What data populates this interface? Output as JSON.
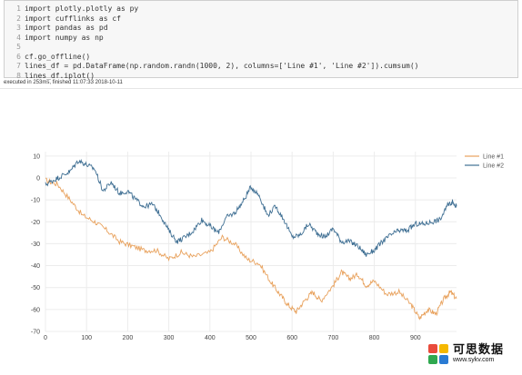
{
  "code_cell": {
    "lines": [
      {
        "num": "1",
        "text": "import plotly.plotly as py"
      },
      {
        "num": "2",
        "text": "import cufflinks as cf"
      },
      {
        "num": "3",
        "text": "import pandas as pd"
      },
      {
        "num": "4",
        "text": "import numpy as np"
      },
      {
        "num": "5",
        "text": ""
      },
      {
        "num": "6",
        "text": "cf.go_offline()"
      },
      {
        "num": "7",
        "text": "lines_df = pd.DataFrame(np.random.randn(1000, 2), columns=['Line #1', 'Line #2']).cumsum()"
      },
      {
        "num": "8",
        "text": "lines_df.iplot()"
      }
    ],
    "status": "executed in 253ms, finished 11:07:33 2018-10-11"
  },
  "chart_data": {
    "type": "line",
    "xlim": [
      0,
      1000
    ],
    "ylim": [
      -70,
      12
    ],
    "x_ticks": [
      0,
      100,
      200,
      300,
      400,
      500,
      600,
      700,
      800,
      900
    ],
    "y_ticks": [
      10,
      0,
      -10,
      -20,
      -30,
      -40,
      -50,
      -60,
      -70
    ],
    "grid": true,
    "legend_position": "top-right",
    "series": [
      {
        "name": "Line #1",
        "color": "#e8a15c",
        "points": [
          [
            0,
            -1
          ],
          [
            30,
            -3
          ],
          [
            60,
            -10
          ],
          [
            90,
            -17
          ],
          [
            120,
            -20
          ],
          [
            150,
            -24
          ],
          [
            180,
            -29
          ],
          [
            210,
            -31
          ],
          [
            240,
            -33
          ],
          [
            270,
            -33
          ],
          [
            300,
            -37
          ],
          [
            330,
            -34
          ],
          [
            360,
            -36
          ],
          [
            400,
            -34
          ],
          [
            430,
            -27
          ],
          [
            460,
            -30
          ],
          [
            490,
            -37
          ],
          [
            520,
            -39
          ],
          [
            550,
            -48
          ],
          [
            570,
            -53
          ],
          [
            590,
            -58
          ],
          [
            610,
            -61
          ],
          [
            630,
            -56
          ],
          [
            650,
            -52
          ],
          [
            670,
            -56
          ],
          [
            700,
            -49
          ],
          [
            720,
            -43
          ],
          [
            740,
            -46
          ],
          [
            760,
            -44
          ],
          [
            780,
            -49
          ],
          [
            800,
            -47
          ],
          [
            830,
            -53
          ],
          [
            860,
            -52
          ],
          [
            890,
            -58
          ],
          [
            910,
            -64
          ],
          [
            930,
            -60
          ],
          [
            950,
            -62
          ],
          [
            970,
            -55
          ],
          [
            985,
            -52
          ],
          [
            1000,
            -55
          ]
        ]
      },
      {
        "name": "Line #2",
        "color": "#3f6f93",
        "points": [
          [
            0,
            -3
          ],
          [
            20,
            -1
          ],
          [
            40,
            1
          ],
          [
            60,
            3
          ],
          [
            80,
            8
          ],
          [
            100,
            6
          ],
          [
            120,
            4
          ],
          [
            140,
            -6
          ],
          [
            160,
            -2
          ],
          [
            180,
            -7
          ],
          [
            200,
            -6
          ],
          [
            220,
            -10
          ],
          [
            240,
            -13
          ],
          [
            260,
            -12
          ],
          [
            280,
            -17
          ],
          [
            300,
            -24
          ],
          [
            320,
            -29
          ],
          [
            340,
            -27
          ],
          [
            360,
            -24
          ],
          [
            380,
            -19
          ],
          [
            400,
            -22
          ],
          [
            420,
            -25
          ],
          [
            440,
            -18
          ],
          [
            460,
            -16
          ],
          [
            480,
            -11
          ],
          [
            500,
            -4
          ],
          [
            520,
            -8
          ],
          [
            540,
            -17
          ],
          [
            560,
            -13
          ],
          [
            580,
            -19
          ],
          [
            600,
            -27
          ],
          [
            620,
            -26
          ],
          [
            640,
            -21
          ],
          [
            660,
            -25
          ],
          [
            680,
            -27
          ],
          [
            700,
            -23
          ],
          [
            720,
            -29
          ],
          [
            740,
            -29
          ],
          [
            760,
            -31
          ],
          [
            780,
            -35
          ],
          [
            800,
            -33
          ],
          [
            820,
            -29
          ],
          [
            840,
            -26
          ],
          [
            860,
            -24
          ],
          [
            880,
            -24
          ],
          [
            900,
            -21
          ],
          [
            920,
            -21
          ],
          [
            940,
            -20
          ],
          [
            960,
            -19
          ],
          [
            980,
            -12
          ],
          [
            990,
            -11
          ],
          [
            1000,
            -13
          ]
        ]
      }
    ]
  },
  "watermark": {
    "title": "可思数据",
    "url": "www.sykv.com"
  }
}
